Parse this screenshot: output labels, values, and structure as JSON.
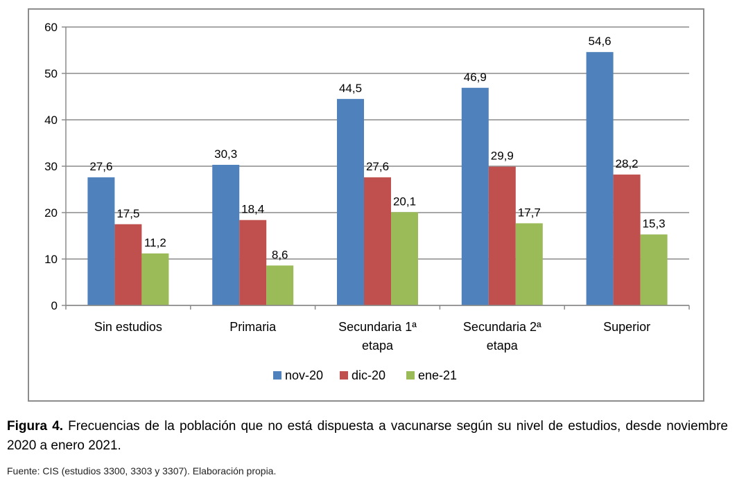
{
  "chart_data": {
    "type": "bar",
    "categories": [
      [
        "Sin estudios"
      ],
      [
        "Primaria"
      ],
      [
        "Secundaria 1ª",
        "etapa"
      ],
      [
        "Secundaria 2ª",
        "etapa"
      ],
      [
        "Superior"
      ]
    ],
    "series": [
      {
        "name": "nov-20",
        "color": "#4f81bd",
        "values": [
          27.6,
          30.3,
          44.5,
          46.9,
          54.6
        ],
        "labels": [
          "27,6",
          "30,3",
          "44,5",
          "46,9",
          "54,6"
        ]
      },
      {
        "name": "dic-20",
        "color": "#c0504d",
        "values": [
          17.5,
          18.4,
          27.6,
          29.9,
          28.2
        ],
        "labels": [
          "17,5",
          "18,4",
          "27,6",
          "29,9",
          "28,2"
        ]
      },
      {
        "name": "ene-21",
        "color": "#9bbb59",
        "values": [
          11.2,
          8.6,
          20.1,
          17.7,
          15.3
        ],
        "labels": [
          "11,2",
          "8,6",
          "20,1",
          "17,7",
          "15,3"
        ]
      }
    ],
    "ylim": [
      0,
      60
    ],
    "yticks": [
      "0",
      "10",
      "20",
      "30",
      "40",
      "50",
      "60"
    ],
    "grid": true,
    "legend_position": "bottom"
  },
  "caption": {
    "label": "Figura 4.",
    "text": " Frecuencias de la población que no está dispuesta a vacunarse según su nivel de estudios, desde noviembre 2020 a enero 2021."
  },
  "source": "Fuente: CIS (estudios 3300, 3303 y 3307). Elaboración propia."
}
